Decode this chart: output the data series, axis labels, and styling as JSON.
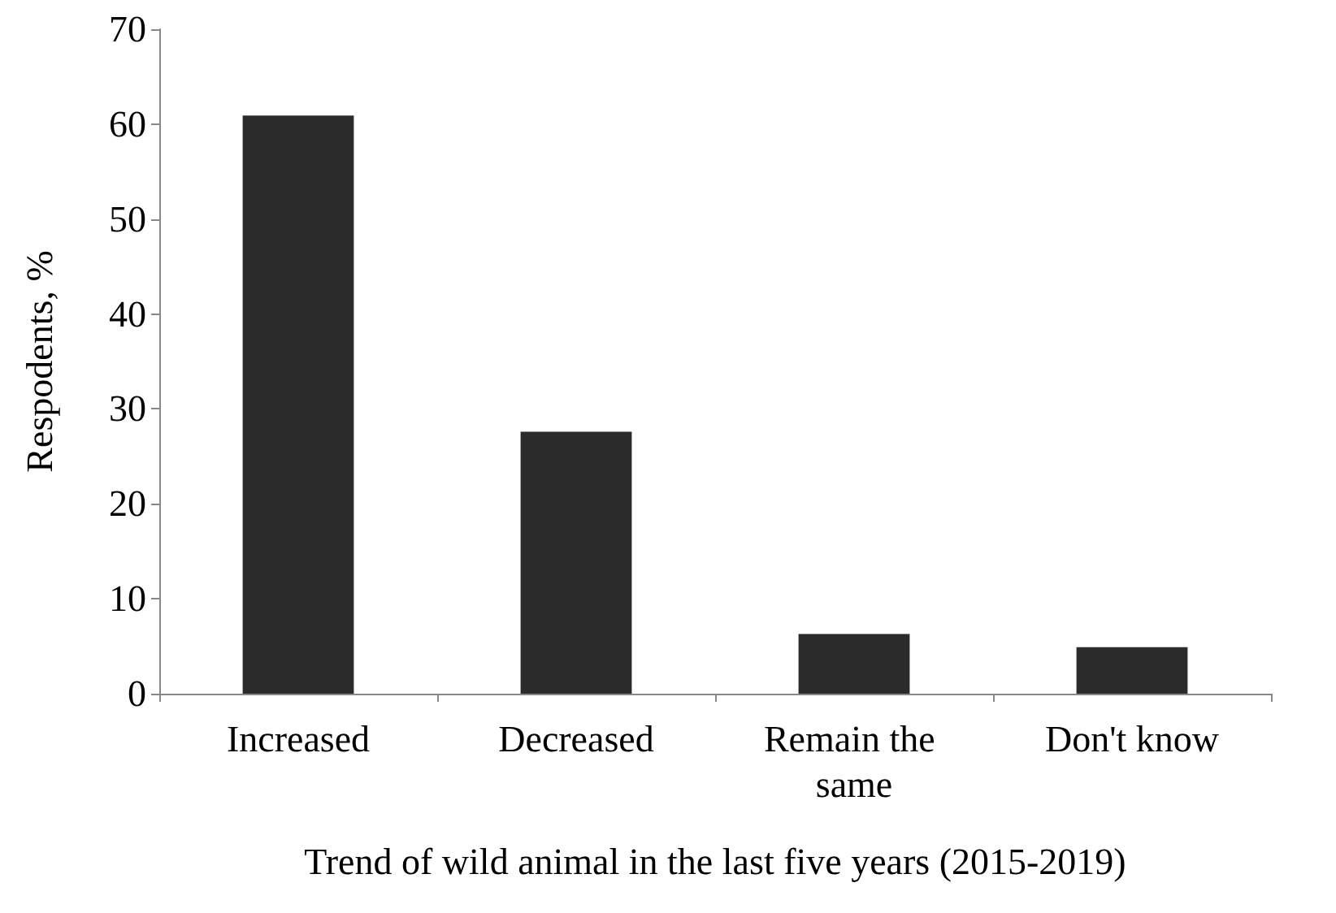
{
  "chart_data": {
    "type": "bar",
    "xlabel": "Trend of wild animal in the last five years (2015-2019)",
    "ylabel": "Respodents, %",
    "categories": [
      "Increased",
      "Decreased",
      "Remain the same",
      "Don't know"
    ],
    "values": [
      60.9,
      27.6,
      6.3,
      4.9
    ],
    "color": "#2b2b2b",
    "ylim": [
      0,
      70
    ],
    "yticks": [
      0,
      10,
      20,
      30,
      40,
      50,
      60,
      70
    ],
    "grid": false
  }
}
